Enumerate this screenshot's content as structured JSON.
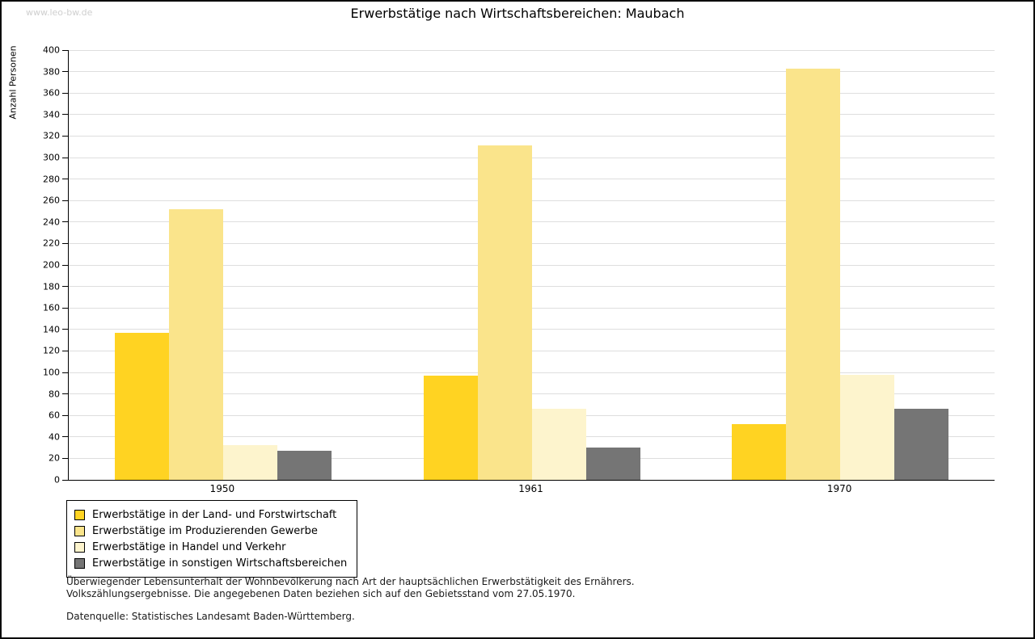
{
  "watermark": "www.leo-bw.de",
  "chart_data": {
    "type": "bar",
    "title": "Erwerbstätige nach Wirtschaftsbereichen: Maubach",
    "xlabel": "",
    "ylabel": "Anzahl Personen",
    "ylim": [
      0,
      400
    ],
    "ytick_step": 20,
    "grid": true,
    "legend_position": "bottom-left",
    "categories": [
      "1950",
      "1961",
      "1970"
    ],
    "series": [
      {
        "name": "Erwerbstätige in der Land- und Forstwirtschaft",
        "color": "#ffd322",
        "values": [
          137,
          97,
          52
        ]
      },
      {
        "name": "Erwerbstätige im Produzierenden Gewerbe",
        "color": "#fae48b",
        "values": [
          252,
          311,
          383
        ]
      },
      {
        "name": "Erwerbstätige in Handel und Verkehr",
        "color": "#fdf4cd",
        "values": [
          32,
          66,
          98
        ]
      },
      {
        "name": "Erwerbstätige in sonstigen Wirtschaftsbereichen",
        "color": "#757575",
        "values": [
          27,
          30,
          66
        ]
      }
    ]
  },
  "footnotes": {
    "line1": "Überwiegender Lebensunterhalt der Wohnbevölkerung nach Art der hauptsächlichen Erwerbstätigkeit des Ernährers.",
    "line2": "Volkszählungsergebnisse. Die angegebenen Daten beziehen sich auf den Gebietsstand vom 27.05.1970.",
    "source": "Datenquelle: Statistisches Landesamt Baden-Württemberg."
  }
}
